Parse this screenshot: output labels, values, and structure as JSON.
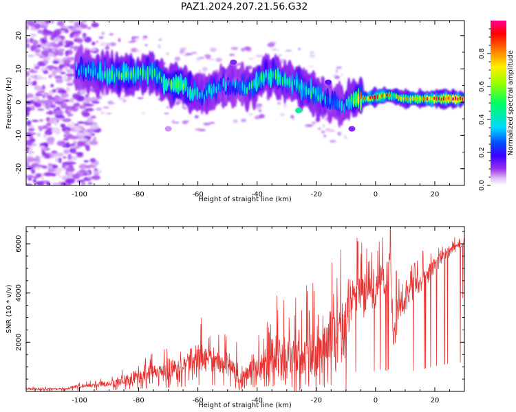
{
  "title": "PAZ1.2024.207.21.56.G32",
  "panels": {
    "spectrogram": {
      "xlabel": "Height of straight line (km)",
      "ylabel": "Frequency (Hz)",
      "xlim": [
        -118,
        30
      ],
      "ylim": [
        -25,
        24.5
      ],
      "xticks": [
        -100,
        -80,
        -60,
        -40,
        -20,
        0,
        20
      ],
      "yticks": [
        -20,
        -10,
        0,
        10,
        20
      ],
      "colorbar": {
        "label": "Normalized spectral amplitude",
        "ticks": [
          "0.0",
          "0.2",
          "0.4",
          "0.6",
          "0.8"
        ],
        "tick_values": [
          0.0,
          0.2,
          0.4,
          0.6,
          0.8
        ],
        "range": [
          0,
          1
        ],
        "colormap": "rainbow (white→purple→blue→cyan→green→yellow→red→magenta)"
      }
    },
    "snr": {
      "xlabel": "Height of straight line (km)",
      "ylabel": "SNR (10 * v/v)",
      "xlim": [
        -118,
        30
      ],
      "ylim": [
        0,
        6700
      ],
      "xticks": [
        -100,
        -80,
        -60,
        -40,
        -20,
        0,
        20
      ],
      "yticks": [
        2000,
        4000,
        6000
      ],
      "line_color": "#e8312f"
    }
  },
  "chart_data": [
    {
      "type": "heatmap",
      "title": "PAZ1.2024.207.21.56.G32",
      "xlabel": "Height of straight line (km)",
      "ylabel": "Frequency (Hz)",
      "xlim": [
        -118,
        30
      ],
      "ylim": [
        -25,
        24.5
      ],
      "ridge": {
        "x": [
          -100,
          -95,
          -90,
          -85,
          -80,
          -75,
          -70,
          -66,
          -62,
          -58,
          -55,
          -52,
          -48,
          -45,
          -42,
          -38,
          -35,
          -32,
          -28,
          -24,
          -21,
          -18,
          -14,
          -11,
          -8,
          -6,
          -3,
          0,
          3,
          6,
          9,
          12,
          15,
          18,
          22,
          26,
          30
        ],
        "freq": [
          10,
          9,
          8.5,
          8,
          8,
          9,
          5,
          6,
          3,
          2,
          4,
          5,
          5,
          5,
          4,
          8,
          8,
          7,
          6,
          4,
          3,
          1,
          0,
          -1,
          0.5,
          1,
          1,
          1.5,
          2,
          2,
          1,
          1,
          1,
          1,
          1,
          1,
          1
        ],
        "amplitude": [
          0.3,
          0.4,
          0.45,
          0.5,
          0.5,
          0.45,
          0.5,
          0.55,
          0.45,
          0.35,
          0.4,
          0.35,
          0.3,
          0.35,
          0.45,
          0.45,
          0.5,
          0.45,
          0.4,
          0.4,
          0.45,
          0.35,
          0.3,
          0.35,
          0.5,
          0.65,
          0.85,
          0.9,
          0.8,
          0.6,
          0.7,
          0.85,
          0.9,
          0.95,
          0.92,
          0.92,
          0.92
        ]
      },
      "colorbar": {
        "label": "Normalized spectral amplitude",
        "range": [
          0,
          1
        ]
      }
    },
    {
      "type": "line",
      "xlabel": "Height of straight line (km)",
      "ylabel": "SNR (10 * v/v)",
      "xlim": [
        -118,
        30
      ],
      "ylim": [
        0,
        6700
      ],
      "series": [
        {
          "x": [
            -118,
            -105,
            -100,
            -95,
            -90,
            -85,
            -80,
            -75,
            -70,
            -65,
            -60,
            -55,
            -50,
            -46,
            -42,
            -38,
            -34,
            -30,
            -26,
            -22,
            -18,
            -14,
            -12,
            -10,
            -8,
            -6,
            -4,
            -2,
            0,
            2,
            4,
            5,
            6,
            8,
            10,
            12,
            15,
            18,
            22,
            25,
            28,
            30
          ],
          "y": [
            100,
            100,
            200,
            250,
            300,
            450,
            600,
            700,
            800,
            1000,
            1300,
            1300,
            1200,
            400,
            900,
            1000,
            1300,
            1500,
            1300,
            1500,
            1400,
            2300,
            2500,
            2400,
            3500,
            4300,
            3700,
            3800,
            4200,
            4500,
            4200,
            5300,
            2300,
            3600,
            3600,
            4200,
            4400,
            4900,
            5400,
            5700,
            5900,
            6000
          ],
          "amp": [
            50,
            50,
            80,
            100,
            150,
            250,
            350,
            450,
            500,
            600,
            900,
            800,
            700,
            300,
            600,
            900,
            1300,
            1400,
            1500,
            1500,
            1500,
            1800,
            1700,
            1600,
            1500,
            1200,
            1000,
            900,
            800,
            900,
            900,
            1000,
            700,
            800,
            600,
            500,
            500,
            400,
            300,
            250,
            200,
            150
          ],
          "spikes": [
            [
              -53,
              2300
            ],
            [
              -47,
              2000
            ],
            [
              -36,
              2400
            ],
            [
              -33,
              3300
            ],
            [
              -31,
              3700
            ],
            [
              -27,
              3800
            ],
            [
              -25,
              3300
            ],
            [
              -13,
              4600
            ],
            [
              -6,
              6100
            ],
            [
              -3,
              5800
            ],
            [
              5,
              6600
            ],
            [
              7,
              4900
            ],
            [
              14,
              4900
            ],
            [
              16,
              5700
            ],
            [
              26,
              6100
            ]
          ],
          "dropouts": [
            [
              -46,
              50
            ],
            [
              -10,
              0
            ],
            [
              6,
              1900
            ],
            [
              29.5,
              3800
            ]
          ]
        }
      ]
    }
  ]
}
